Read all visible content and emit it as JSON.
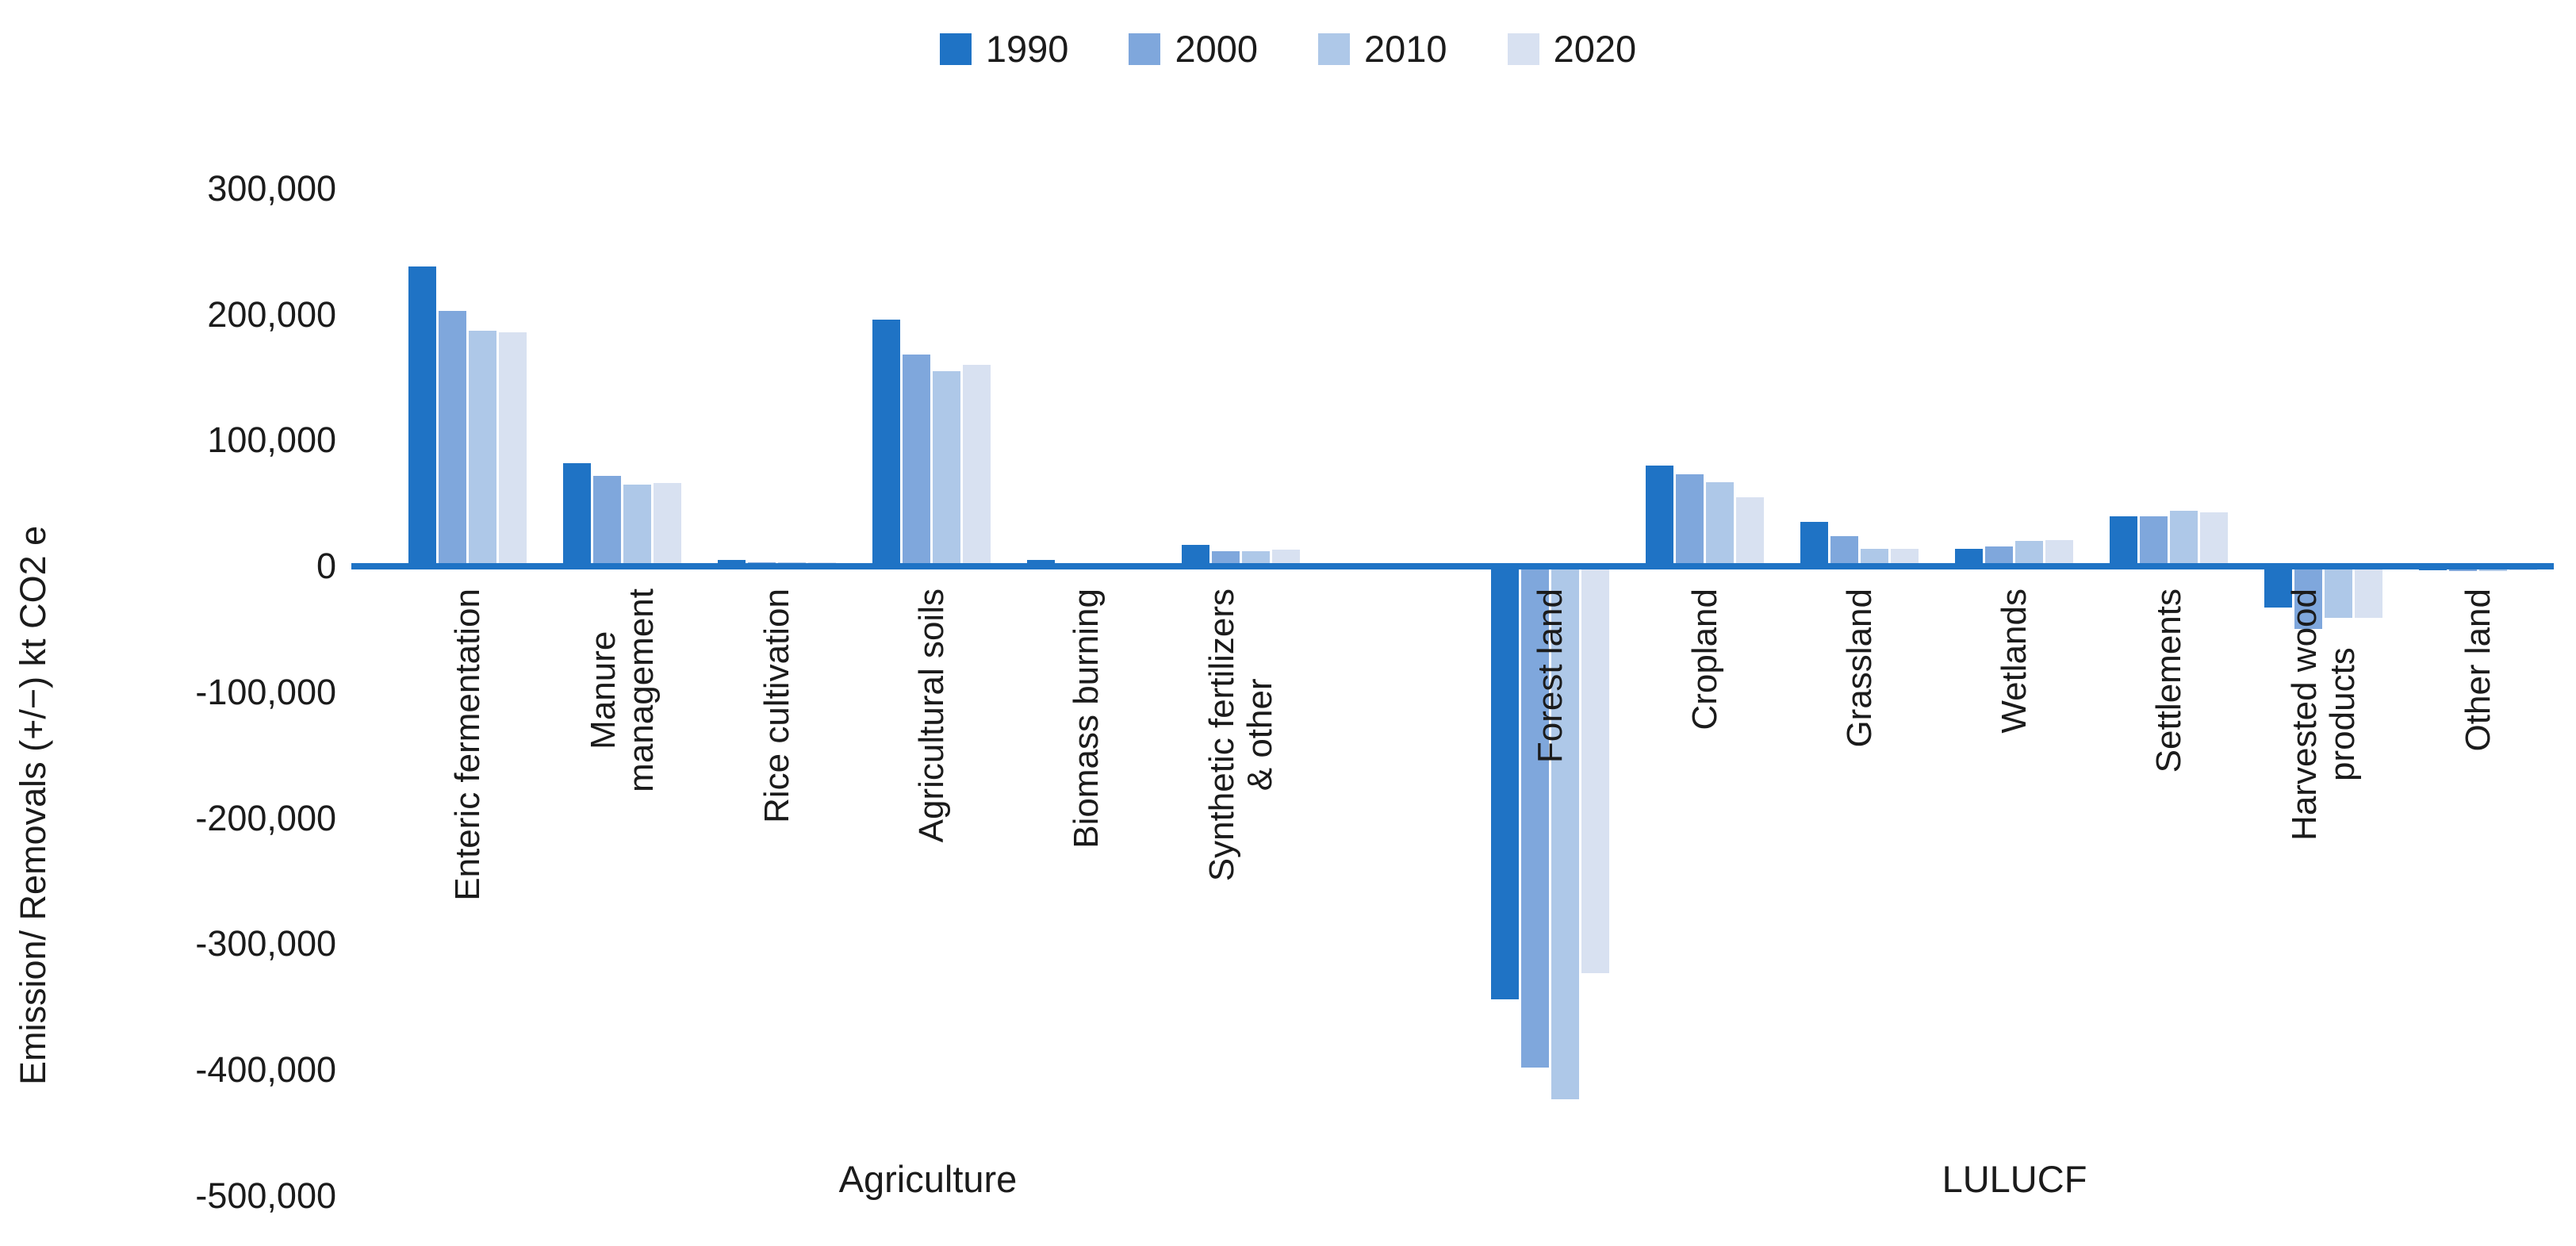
{
  "legend": {
    "items": [
      {
        "label": "1990",
        "color": "#1F73C5"
      },
      {
        "label": "2000",
        "color": "#7FA7DC"
      },
      {
        "label": "2010",
        "color": "#AEC8E8"
      },
      {
        "label": "2020",
        "color": "#D8E1F1"
      }
    ]
  },
  "y_axis": {
    "title": "Emission/ Removals (+/−) kt CO2 e",
    "ticks": [
      {
        "value": 300000,
        "label": "300,000"
      },
      {
        "value": 200000,
        "label": "200,000"
      },
      {
        "value": 100000,
        "label": "100,000"
      },
      {
        "value": 0,
        "label": "0"
      },
      {
        "value": -100000,
        "label": "-100,000"
      },
      {
        "value": -200000,
        "label": "-200,000"
      },
      {
        "value": -300000,
        "label": "-300,000"
      },
      {
        "value": -400000,
        "label": "-400,000"
      },
      {
        "value": -500000,
        "label": "-500,000"
      }
    ],
    "axis_color": "#1F73C5"
  },
  "chart_data": {
    "type": "bar",
    "title": "",
    "xlabel": "",
    "ylabel": "Emission/ Removals (+/−) kt CO2 e",
    "unit": "kt CO2 e",
    "ylim": [
      -500000,
      300000
    ],
    "y_tick_step": 100000,
    "grid": false,
    "legend_position": "top",
    "categories": [
      "Enteric fermentation",
      "Manure management",
      "Rice cultivation",
      "Agricultural soils",
      "Biomass burning",
      "Synthetic fertilizers & other",
      "Forest land",
      "Cropland",
      "Grassland",
      "Wetlands",
      "Settlements",
      "Harvested wood products",
      "Other land"
    ],
    "category_label_lines": [
      [
        "Enteric fermentation"
      ],
      [
        "Manure",
        "management"
      ],
      [
        "Rice cultivation"
      ],
      [
        "Agricultural soils"
      ],
      [
        "Biomass burning"
      ],
      [
        "Synthetic fertilizers",
        "& other"
      ],
      [
        "Forest land"
      ],
      [
        "Cropland"
      ],
      [
        "Grassland"
      ],
      [
        "Wetlands"
      ],
      [
        "Settlements"
      ],
      [
        "Harvested wood",
        "products"
      ],
      [
        "Other land"
      ]
    ],
    "sections": [
      {
        "label": "Agriculture",
        "categories": [
          0,
          5
        ]
      },
      {
        "label": "LULUCF",
        "categories": [
          6,
          12
        ]
      }
    ],
    "series": [
      {
        "name": "1990",
        "color": "#1F73C5",
        "values": [
          238000,
          82000,
          5000,
          196000,
          5000,
          17000,
          -344000,
          80000,
          35000,
          14000,
          40000,
          -33000,
          -3000
        ]
      },
      {
        "name": "2000",
        "color": "#7FA7DC",
        "values": [
          203000,
          72000,
          3000,
          168000,
          2000,
          12000,
          -398000,
          73000,
          24000,
          16000,
          40000,
          -50000,
          -4000
        ]
      },
      {
        "name": "2010",
        "color": "#AEC8E8",
        "values": [
          187000,
          65000,
          3000,
          155000,
          2000,
          12000,
          -423000,
          67000,
          14000,
          20000,
          44000,
          -41000,
          -4000
        ]
      },
      {
        "name": "2020",
        "color": "#D8E1F1",
        "values": [
          186000,
          66000,
          3000,
          160000,
          2000,
          13000,
          -323000,
          55000,
          14000,
          21000,
          43000,
          -41000,
          -3000
        ]
      }
    ]
  }
}
